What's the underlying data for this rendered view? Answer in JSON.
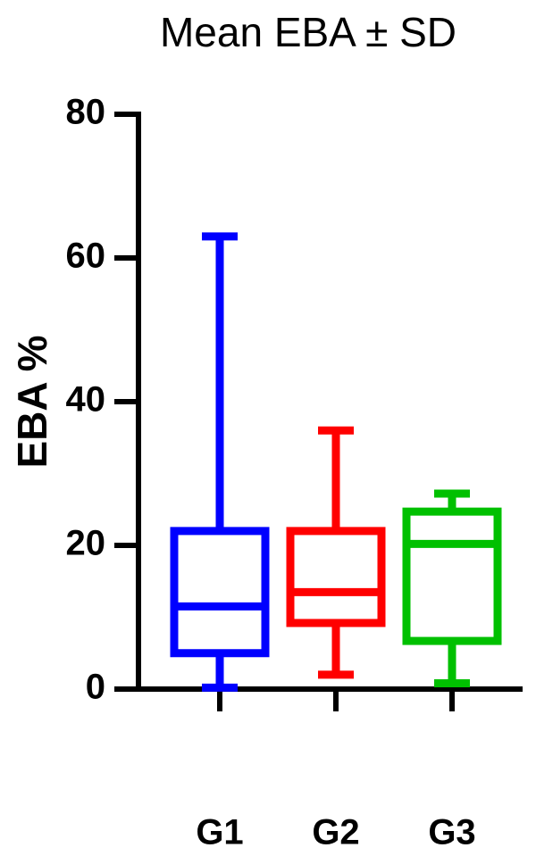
{
  "chart_data": {
    "type": "box",
    "title": "Mean EBA ± SD",
    "y_label": "EBA %",
    "categories": [
      "G1",
      "G2",
      "G3"
    ],
    "boxes": [
      {
        "color": "#0000ff",
        "min": 0.2,
        "q1": 5,
        "median": 11.5,
        "q3": 22,
        "max": 63
      },
      {
        "color": "#ff0000",
        "min": 2,
        "q1": 9.2,
        "median": 13.5,
        "q3": 22,
        "max": 36
      },
      {
        "color": "#00c000",
        "min": 0.8,
        "q1": 6.7,
        "median": 20.2,
        "q3": 24.7,
        "max": 27.2
      }
    ],
    "ylim": [
      0,
      80
    ],
    "yticks": [
      0,
      20,
      40,
      60,
      80
    ]
  }
}
